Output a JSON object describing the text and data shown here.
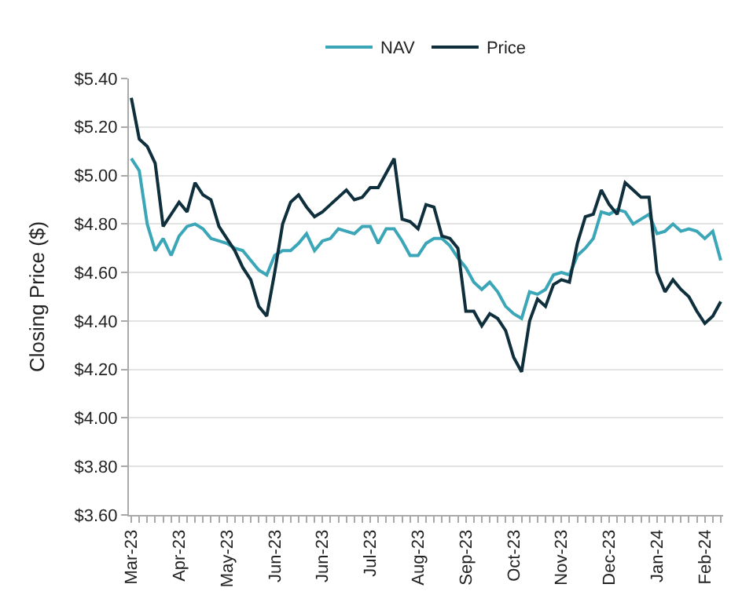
{
  "chart_data": {
    "type": "line",
    "ylabel": "Closing Price ($)",
    "categories": [
      "Mar-23",
      null,
      null,
      null,
      null,
      null,
      "Apr-23",
      null,
      null,
      null,
      null,
      null,
      "May-23",
      null,
      null,
      null,
      null,
      null,
      "Jun-23",
      null,
      null,
      null,
      null,
      null,
      "Jun-23",
      null,
      null,
      null,
      null,
      null,
      "Jul-23",
      null,
      null,
      null,
      null,
      null,
      "Aug-23",
      null,
      null,
      null,
      null,
      null,
      "Sep-23",
      null,
      null,
      null,
      null,
      null,
      "Oct-23",
      null,
      null,
      null,
      null,
      null,
      "Nov-23",
      null,
      null,
      null,
      null,
      null,
      "Dec-23",
      null,
      null,
      null,
      null,
      null,
      "Jan-24",
      null,
      null,
      null,
      null,
      null,
      "Feb-24",
      null,
      null
    ],
    "series": [
      {
        "name": "NAV",
        "color": "#3ba6b8",
        "values": [
          5.07,
          5.02,
          4.8,
          4.69,
          4.74,
          4.67,
          4.75,
          4.79,
          4.8,
          4.78,
          4.74,
          4.73,
          4.72,
          4.7,
          4.69,
          4.65,
          4.61,
          4.59,
          4.67,
          4.69,
          4.69,
          4.72,
          4.76,
          4.69,
          4.73,
          4.74,
          4.78,
          4.77,
          4.76,
          4.79,
          4.79,
          4.72,
          4.78,
          4.78,
          4.73,
          4.67,
          4.67,
          4.72,
          4.74,
          4.74,
          4.71,
          4.66,
          4.62,
          4.56,
          4.53,
          4.56,
          4.52,
          4.46,
          4.43,
          4.41,
          4.52,
          4.51,
          4.53,
          4.59,
          4.6,
          4.59,
          4.67,
          4.7,
          4.74,
          4.85,
          4.84,
          4.86,
          4.85,
          4.8,
          4.82,
          4.84,
          4.76,
          4.77,
          4.8,
          4.77,
          4.78,
          4.77,
          4.74,
          4.77,
          4.65
        ]
      },
      {
        "name": "Price",
        "color": "#0e2f3b",
        "values": [
          5.32,
          5.15,
          5.12,
          5.05,
          4.79,
          4.84,
          4.89,
          4.85,
          4.97,
          4.92,
          4.9,
          4.79,
          4.74,
          4.69,
          4.62,
          4.57,
          4.46,
          4.42,
          4.6,
          4.8,
          4.89,
          4.92,
          4.87,
          4.83,
          4.85,
          4.88,
          4.91,
          4.94,
          4.9,
          4.91,
          4.95,
          4.95,
          5.01,
          5.07,
          4.82,
          4.81,
          4.78,
          4.88,
          4.87,
          4.75,
          4.74,
          4.7,
          4.44,
          4.44,
          4.38,
          4.43,
          4.41,
          4.36,
          4.25,
          4.19,
          4.4,
          4.49,
          4.46,
          4.55,
          4.57,
          4.56,
          4.72,
          4.83,
          4.84,
          4.94,
          4.88,
          4.84,
          4.97,
          4.94,
          4.91,
          4.91,
          4.6,
          4.52,
          4.57,
          4.53,
          4.5,
          4.44,
          4.39,
          4.42,
          4.48
        ]
      }
    ],
    "ylim": [
      3.6,
      5.4
    ],
    "yticks": [
      {
        "value": 3.6,
        "label": "$3.60"
      },
      {
        "value": 3.8,
        "label": "$3.80"
      },
      {
        "value": 4.0,
        "label": "$4.00"
      },
      {
        "value": 4.2,
        "label": "$4.20"
      },
      {
        "value": 4.4,
        "label": "$4.40"
      },
      {
        "value": 4.6,
        "label": "$4.60"
      },
      {
        "value": 4.8,
        "label": "$4.80"
      },
      {
        "value": 5.0,
        "label": "$5.00"
      },
      {
        "value": 5.2,
        "label": "$5.20"
      },
      {
        "value": 5.4,
        "label": "$5.40"
      }
    ],
    "grid": "y",
    "legend": "top",
    "marker": "none",
    "line_style": "solid"
  }
}
